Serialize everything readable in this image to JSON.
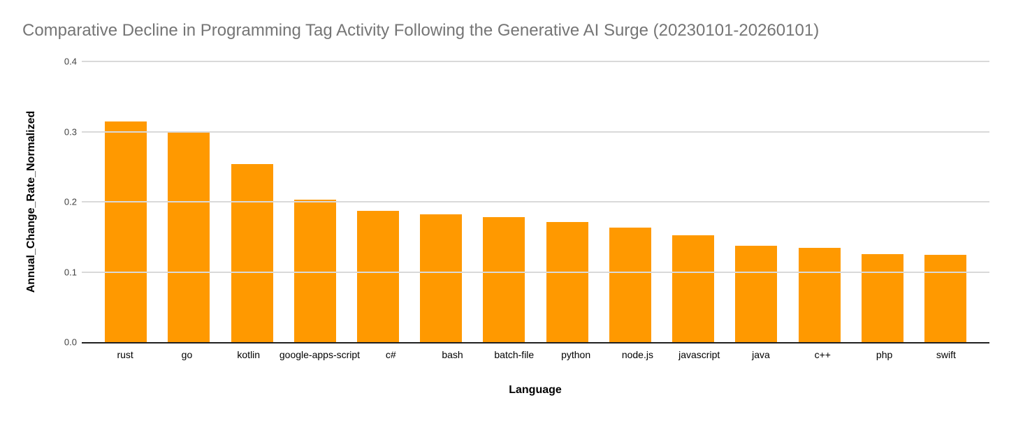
{
  "title": "Comparative Decline in Programming Tag Activity Following the Generative AI Surge (20230101-20260101)",
  "colors": {
    "bar": "#ff9900",
    "title_text": "#757575",
    "gridline": "#d9d9d9",
    "axis_line": "#212121",
    "tick_text": "#424242",
    "category_text": "#000000"
  },
  "chart_data": {
    "type": "bar",
    "title": "Comparative Decline in Programming Tag Activity Following the Generative AI Surge (20230101-20260101)",
    "xlabel": "Language",
    "ylabel": "Annual_Change_Rate_Normalized",
    "categories": [
      "rust",
      "go",
      "kotlin",
      "google-apps-script",
      "c#",
      "bash",
      "batch-file",
      "python",
      "node.js",
      "javascript",
      "java",
      "c++",
      "php",
      "swift"
    ],
    "values": [
      0.314,
      0.301,
      0.254,
      0.203,
      0.187,
      0.182,
      0.178,
      0.171,
      0.163,
      0.152,
      0.137,
      0.134,
      0.125,
      0.124
    ],
    "ylim": [
      0,
      0.4
    ],
    "ytick_labels": [
      "0.0",
      "0.1",
      "0.2",
      "0.3",
      "0.4"
    ],
    "grid": true,
    "legend": "none",
    "bar_color": "#ff9900"
  }
}
